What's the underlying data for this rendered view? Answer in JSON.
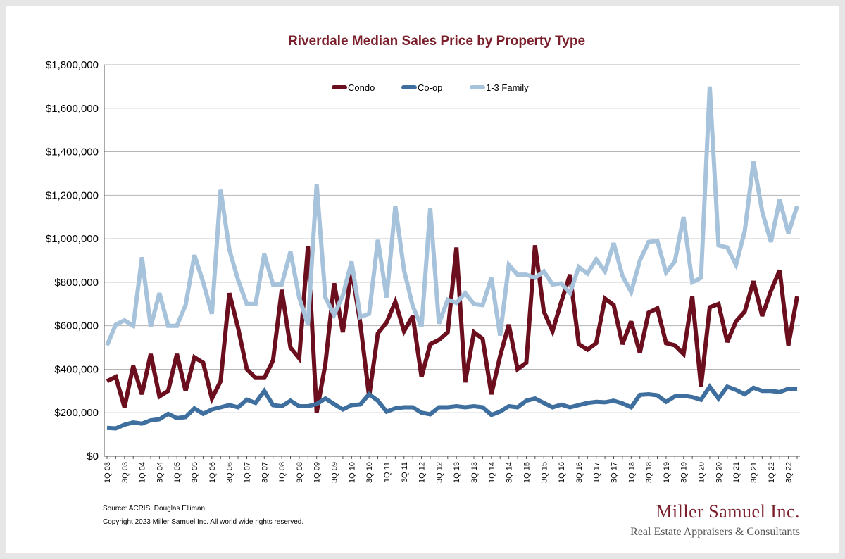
{
  "chart_data": {
    "type": "line",
    "title": "Riverdale Median Sales Price by Property Type",
    "xlabel": "",
    "ylabel": "",
    "ylim": [
      0,
      1800000
    ],
    "yticks": [
      "$0",
      "$200,000",
      "$400,000",
      "$600,000",
      "$800,000",
      "$1,000,000",
      "$1,200,000",
      "$1,400,000",
      "$1,600,000",
      "$1,800,000"
    ],
    "grid": true,
    "legend_position": "top-center",
    "categories": [
      "1Q 03",
      "2Q 03",
      "3Q 03",
      "4Q 03",
      "1Q 04",
      "2Q 04",
      "3Q 04",
      "4Q 04",
      "1Q 05",
      "2Q 05",
      "3Q 05",
      "4Q 05",
      "1Q 06",
      "2Q 06",
      "3Q 06",
      "4Q 06",
      "1Q 07",
      "2Q 07",
      "3Q 07",
      "4Q 07",
      "1Q 08",
      "2Q 08",
      "3Q 08",
      "4Q 08",
      "1Q 09",
      "2Q 09",
      "3Q 09",
      "4Q 09",
      "1Q 10",
      "2Q 10",
      "3Q 10",
      "4Q 10",
      "1Q 11",
      "2Q 11",
      "3Q 11",
      "4Q 11",
      "1Q 12",
      "2Q 12",
      "3Q 12",
      "4Q 12",
      "1Q 13",
      "2Q 13",
      "3Q 13",
      "4Q 13",
      "1Q 14",
      "2Q 14",
      "3Q 14",
      "4Q 14",
      "1Q 15",
      "2Q 15",
      "3Q 15",
      "4Q 15",
      "1Q 16",
      "2Q 16",
      "3Q 16",
      "4Q 16",
      "1Q 17",
      "2Q 17",
      "3Q 17",
      "4Q 17",
      "1Q 18",
      "2Q 18",
      "3Q 18",
      "4Q 18",
      "1Q 19",
      "2Q 19",
      "3Q 19",
      "4Q 19",
      "1Q 20",
      "2Q 20",
      "3Q 20",
      "4Q 20",
      "1Q 21",
      "2Q 21",
      "3Q 21",
      "4Q 21",
      "1Q 22",
      "2Q 22",
      "3Q 22",
      "4Q 22"
    ],
    "tick_labels": [
      "1Q 03",
      "3Q 03",
      "1Q 04",
      "3Q 04",
      "1Q 05",
      "3Q 05",
      "1Q 06",
      "3Q 06",
      "1Q 07",
      "3Q 07",
      "1Q 08",
      "3Q 08",
      "1Q 09",
      "3Q 09",
      "1Q 10",
      "3Q 10",
      "1Q 11",
      "3Q 11",
      "1Q 12",
      "3Q 12",
      "1Q 13",
      "3Q 13",
      "1Q 14",
      "3Q 14",
      "1Q 15",
      "3Q 15",
      "1Q 16",
      "3Q 16",
      "1Q 17",
      "3Q 17",
      "1Q 18",
      "3Q 18",
      "1Q 19",
      "3Q 19",
      "1Q 20",
      "3Q 20",
      "1Q 21",
      "3Q 21",
      "1Q 22",
      "3Q 22"
    ],
    "series": [
      {
        "name": "Condo",
        "color": "#6b0f1e",
        "values": [
          345000,
          365000,
          225000,
          415000,
          285000,
          470000,
          275000,
          300000,
          470000,
          300000,
          455000,
          430000,
          265000,
          345000,
          750000,
          590000,
          400000,
          360000,
          360000,
          440000,
          765000,
          500000,
          450000,
          965000,
          200000,
          425000,
          795000,
          570000,
          860000,
          610000,
          275000,
          565000,
          615000,
          710000,
          575000,
          645000,
          365000,
          515000,
          535000,
          570000,
          960000,
          340000,
          570000,
          540000,
          285000,
          460000,
          605000,
          400000,
          430000,
          970000,
          665000,
          575000,
          710000,
          835000,
          515000,
          490000,
          520000,
          725000,
          695000,
          515000,
          620000,
          475000,
          660000,
          680000,
          520000,
          510000,
          470000,
          735000,
          320000,
          685000,
          700000,
          525000,
          620000,
          665000,
          805000,
          645000,
          760000,
          855000,
          510000,
          735000
        ]
      },
      {
        "name": "Co-op",
        "color": "#3f6f9e",
        "values": [
          130000,
          128000,
          145000,
          155000,
          150000,
          165000,
          170000,
          195000,
          175000,
          180000,
          220000,
          195000,
          215000,
          225000,
          235000,
          225000,
          260000,
          245000,
          300000,
          235000,
          230000,
          255000,
          230000,
          230000,
          240000,
          265000,
          240000,
          215000,
          235000,
          238000,
          285000,
          255000,
          205000,
          220000,
          225000,
          225000,
          200000,
          193000,
          225000,
          225000,
          230000,
          225000,
          230000,
          225000,
          190000,
          205000,
          230000,
          225000,
          255000,
          265000,
          245000,
          225000,
          237000,
          225000,
          235000,
          245000,
          250000,
          248000,
          255000,
          243000,
          225000,
          282000,
          285000,
          280000,
          250000,
          275000,
          278000,
          272000,
          260000,
          320000,
          265000,
          320000,
          305000,
          285000,
          315000,
          300000,
          300000,
          295000,
          310000,
          308000
        ]
      },
      {
        "name": "1-3 Family",
        "color": "#a7c2db",
        "values": [
          510000,
          605000,
          625000,
          600000,
          915000,
          595000,
          750000,
          600000,
          600000,
          695000,
          925000,
          800000,
          655000,
          1225000,
          950000,
          810000,
          700000,
          700000,
          930000,
          790000,
          790000,
          940000,
          730000,
          605000,
          1250000,
          730000,
          650000,
          740000,
          895000,
          640000,
          655000,
          995000,
          730000,
          1150000,
          855000,
          690000,
          595000,
          1140000,
          610000,
          720000,
          705000,
          750000,
          700000,
          695000,
          820000,
          555000,
          880000,
          835000,
          835000,
          820000,
          850000,
          790000,
          795000,
          750000,
          870000,
          840000,
          905000,
          850000,
          980000,
          830000,
          755000,
          900000,
          985000,
          990000,
          845000,
          895000,
          1100000,
          800000,
          820000,
          1700000,
          970000,
          960000,
          880000,
          1035000,
          1355000,
          1125000,
          985000,
          1180000,
          1025000,
          1150000
        ]
      }
    ]
  },
  "footer": {
    "source": "Source: ACRIS, Douglas Elliman",
    "copyright": "Copyright 2023 Miller Samuel Inc.  All world wide rights reserved."
  },
  "brand": {
    "name": "Miller Samuel Inc.",
    "tagline": "Real Estate Appraisers & Consultants"
  }
}
